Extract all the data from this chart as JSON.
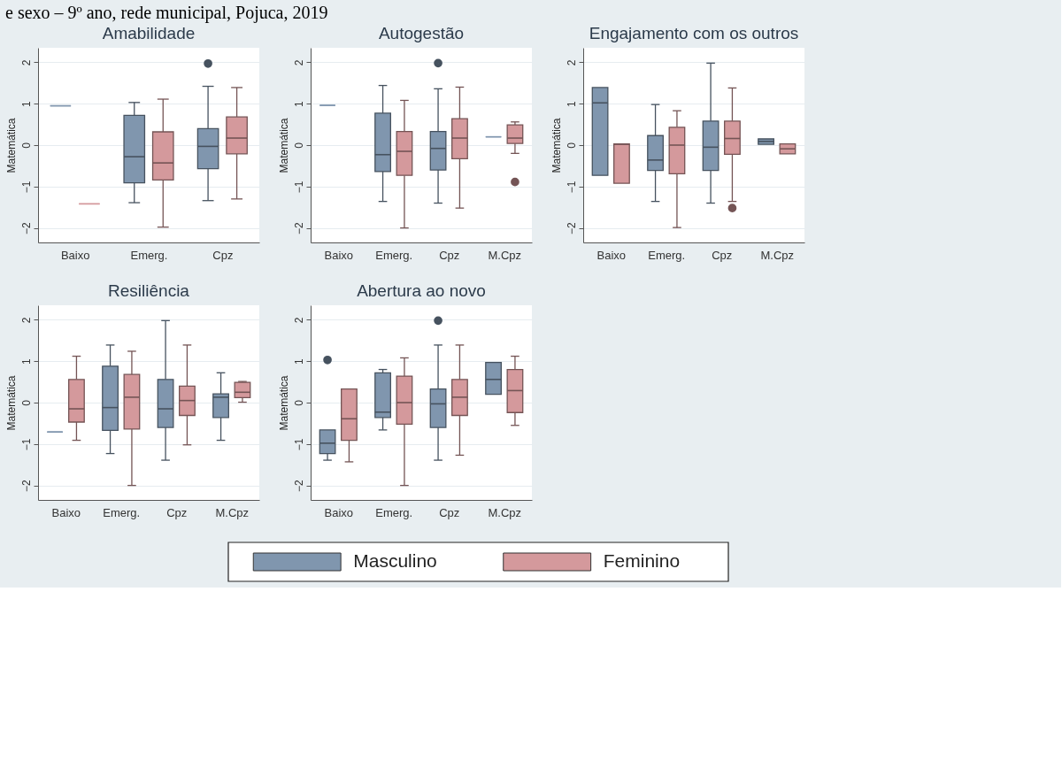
{
  "chart_data": [
    {
      "type": "box",
      "title": "Amabilidade",
      "ylabel": "Matemática",
      "annotations": [
        "e sexo – 9º ano, rede municipal, Pojuca, 2019"
      ],
      "categories": [
        "Baixo",
        "Emerg.",
        "Cpz"
      ],
      "ylim": [
        -2.35,
        2.35
      ],
      "yticks": [
        -2,
        -1,
        0,
        1,
        2
      ],
      "grid": "y",
      "legend": "bottom",
      "series": [
        {
          "name": "Masculino",
          "color": "#8096ae",
          "boxes": [
            {
              "low": 0.95,
              "q1": 0.95,
              "median": 0.95,
              "q3": 0.95,
              "high": 0.95
            },
            {
              "low": -1.39,
              "q1": -0.91,
              "median": -0.28,
              "q3": 0.72,
              "high": 1.03
            },
            {
              "low": -1.34,
              "q1": -0.57,
              "median": -0.03,
              "q3": 0.4,
              "high": 1.42,
              "outliers": [
                1.97
              ]
            }
          ]
        },
        {
          "name": "Feminino",
          "color": "#d4999c",
          "boxes": [
            {
              "low": -1.42,
              "q1": -1.42,
              "median": -1.42,
              "q3": -1.42,
              "high": -1.42
            },
            {
              "low": -1.98,
              "q1": -0.84,
              "median": -0.43,
              "q3": 0.32,
              "high": 1.11
            },
            {
              "low": -1.3,
              "q1": -0.21,
              "median": 0.17,
              "q3": 0.68,
              "high": 1.39
            }
          ]
        }
      ]
    },
    {
      "type": "box",
      "title": "Autogestão",
      "ylabel": "Matemática",
      "categories": [
        "Baixo",
        "Emerg.",
        "Cpz",
        "M.Cpz"
      ],
      "ylim": [
        -2.35,
        2.35
      ],
      "yticks": [
        -2,
        -1,
        0,
        1,
        2
      ],
      "grid": "y",
      "series": [
        {
          "color": "#8096ae",
          "boxes": [
            {
              "low": 0.96,
              "q1": 0.96,
              "median": 0.96,
              "q3": 0.96,
              "high": 0.96
            },
            {
              "low": -1.36,
              "q1": -0.64,
              "median": -0.23,
              "q3": 0.77,
              "high": 1.44
            },
            {
              "low": -1.4,
              "q1": -0.6,
              "median": -0.08,
              "q3": 0.33,
              "high": 1.36,
              "outliers": [
                1.98
              ]
            },
            {
              "low": 0.2,
              "q1": 0.2,
              "median": 0.2,
              "q3": 0.2,
              "high": 0.2
            }
          ]
        },
        {
          "color": "#d4999c",
          "boxes": [
            null,
            {
              "low": -2.0,
              "q1": -0.73,
              "median": -0.15,
              "q3": 0.33,
              "high": 1.08
            },
            {
              "low": -1.52,
              "q1": -0.33,
              "median": 0.17,
              "q3": 0.64,
              "high": 1.4
            },
            {
              "low": -0.2,
              "q1": 0.04,
              "median": 0.17,
              "q3": 0.49,
              "high": 0.56,
              "outliers": [
                -0.89
              ]
            }
          ]
        }
      ]
    },
    {
      "type": "box",
      "title": "Engajamento com os outros",
      "ylabel": "Matemática",
      "categories": [
        "Baixo",
        "Emerg.",
        "Cpz",
        "M.Cpz"
      ],
      "ylim": [
        -2.35,
        2.35
      ],
      "yticks": [
        -2,
        -1,
        0,
        1,
        2
      ],
      "grid": "y",
      "series": [
        {
          "color": "#8096ae",
          "boxes": [
            {
              "low": -0.73,
              "q1": -0.73,
              "median": 1.02,
              "q3": 1.39,
              "high": 1.39
            },
            {
              "low": -1.36,
              "q1": -0.61,
              "median": -0.36,
              "q3": 0.23,
              "high": 0.98
            },
            {
              "low": -1.4,
              "q1": -0.61,
              "median": -0.05,
              "q3": 0.58,
              "high": 1.98
            },
            {
              "low": 0.02,
              "q1": 0.02,
              "median": 0.09,
              "q3": 0.15,
              "high": 0.15
            }
          ]
        },
        {
          "color": "#d4999c",
          "boxes": [
            {
              "low": -0.92,
              "q1": -0.92,
              "median": 0.02,
              "q3": 0.03,
              "high": 0.03
            },
            {
              "low": -1.99,
              "q1": -0.69,
              "median": 0.0,
              "q3": 0.43,
              "high": 0.83
            },
            {
              "low": -1.36,
              "q1": -0.22,
              "median": 0.16,
              "q3": 0.58,
              "high": 1.38,
              "outliers": [
                -1.52
              ]
            },
            {
              "low": -0.21,
              "q1": -0.21,
              "median": -0.09,
              "q3": 0.03,
              "high": 0.03
            }
          ]
        }
      ]
    },
    {
      "type": "box",
      "title": "Resiliência",
      "ylabel": "Matemática",
      "categories": [
        "Baixo",
        "Emerg.",
        "Cpz",
        "M.Cpz"
      ],
      "ylim": [
        -2.35,
        2.35
      ],
      "yticks": [
        -2,
        -1,
        0,
        1,
        2
      ],
      "grid": "y",
      "series": [
        {
          "color": "#8096ae",
          "boxes": [
            {
              "low": -0.71,
              "q1": -0.71,
              "median": -0.71,
              "q3": -0.71,
              "high": -0.71
            },
            {
              "low": -1.23,
              "q1": -0.67,
              "median": -0.12,
              "q3": 0.88,
              "high": 1.39
            },
            {
              "low": -1.39,
              "q1": -0.6,
              "median": -0.15,
              "q3": 0.56,
              "high": 1.98
            },
            {
              "low": -0.91,
              "q1": -0.36,
              "median": 0.13,
              "q3": 0.21,
              "high": 0.72
            }
          ]
        },
        {
          "color": "#d4999c",
          "boxes": [
            {
              "low": -0.91,
              "q1": -0.47,
              "median": -0.15,
              "q3": 0.56,
              "high": 1.12
            },
            {
              "low": -2.0,
              "q1": -0.64,
              "median": 0.13,
              "q3": 0.68,
              "high": 1.24
            },
            {
              "low": -1.02,
              "q1": -0.31,
              "median": 0.05,
              "q3": 0.4,
              "high": 1.39
            },
            {
              "low": 0.01,
              "q1": 0.12,
              "median": 0.25,
              "q3": 0.49,
              "high": 0.51
            }
          ]
        }
      ]
    },
    {
      "type": "box",
      "title": "Abertura ao novo",
      "ylabel": "Matemática",
      "categories": [
        "Baixo",
        "Emerg.",
        "Cpz",
        "M.Cpz"
      ],
      "ylim": [
        -2.35,
        2.35
      ],
      "yticks": [
        -2,
        -1,
        0,
        1,
        2
      ],
      "grid": "y",
      "series": [
        {
          "color": "#8096ae",
          "boxes": [
            {
              "low": -1.39,
              "q1": -1.23,
              "median": -0.98,
              "q3": -0.66,
              "high": -0.66,
              "outliers": [
                1.03
              ]
            },
            {
              "low": -0.66,
              "q1": -0.36,
              "median": -0.23,
              "q3": 0.72,
              "high": 0.8
            },
            {
              "low": -1.39,
              "q1": -0.6,
              "median": -0.03,
              "q3": 0.33,
              "high": 1.39,
              "outliers": [
                1.98
              ]
            },
            {
              "low": 0.2,
              "q1": 0.2,
              "median": 0.56,
              "q3": 0.97,
              "high": 0.97
            }
          ]
        },
        {
          "color": "#d4999c",
          "boxes": [
            {
              "low": -1.43,
              "q1": -0.91,
              "median": -0.39,
              "q3": 0.33,
              "high": 0.33
            },
            {
              "low": -2.0,
              "q1": -0.52,
              "median": 0.0,
              "q3": 0.64,
              "high": 1.08
            },
            {
              "low": -1.27,
              "q1": -0.31,
              "median": 0.13,
              "q3": 0.56,
              "high": 1.39
            },
            {
              "low": -0.55,
              "q1": -0.24,
              "median": 0.29,
              "q3": 0.8,
              "high": 1.12
            }
          ]
        }
      ]
    }
  ]
}
